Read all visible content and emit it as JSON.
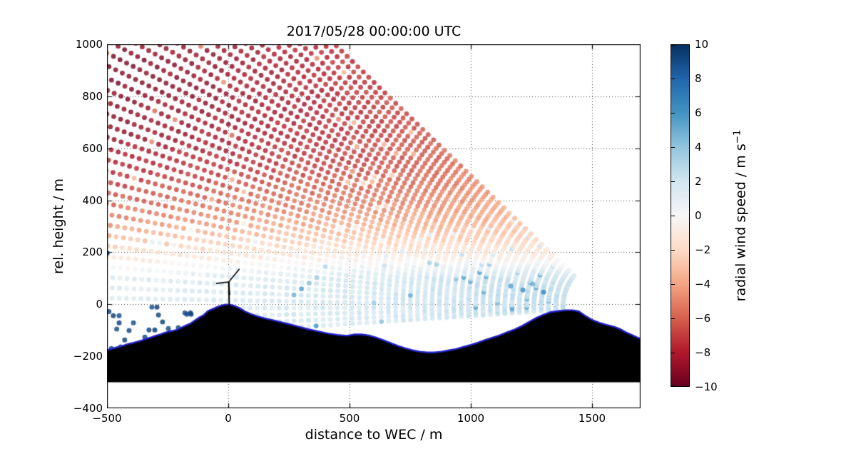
{
  "figure": {
    "title": "2017/05/28 00:00:00 UTC",
    "xlabel": "distance to WEC / m",
    "ylabel": "rel. height / m"
  },
  "axes": {
    "xlim": [
      -500,
      1700
    ],
    "ylim": [
      -400,
      1000
    ],
    "xticks": [
      {
        "v": -500,
        "label": "−500"
      },
      {
        "v": 0,
        "label": "0"
      },
      {
        "v": 500,
        "label": "500"
      },
      {
        "v": 1000,
        "label": "1000"
      },
      {
        "v": 1500,
        "label": "1500"
      }
    ],
    "yticks": [
      {
        "v": 1000,
        "label": "1000"
      },
      {
        "v": 800,
        "label": "800"
      },
      {
        "v": 600,
        "label": "600"
      },
      {
        "v": 400,
        "label": "400"
      },
      {
        "v": 200,
        "label": "200"
      },
      {
        "v": 0,
        "label": "0"
      },
      {
        "v": -200,
        "label": "−200"
      },
      {
        "v": -400,
        "label": "−400"
      }
    ],
    "grid_color": "#444444",
    "frame_color": "#000000"
  },
  "colorbar": {
    "label_text": "radial wind speed / m s",
    "label_exponent": "−1",
    "vmin": -10,
    "vmax": 10,
    "ticks": [
      {
        "v": 10,
        "label": "10"
      },
      {
        "v": 8,
        "label": "8"
      },
      {
        "v": 6,
        "label": "6"
      },
      {
        "v": 4,
        "label": "4"
      },
      {
        "v": 2,
        "label": "2"
      },
      {
        "v": 0,
        "label": "0"
      },
      {
        "v": -2,
        "label": "−2"
      },
      {
        "v": -4,
        "label": "−4"
      },
      {
        "v": -6,
        "label": "−6"
      },
      {
        "v": -8,
        "label": "−8"
      },
      {
        "v": -10,
        "label": "−10"
      }
    ]
  },
  "chart_data": {
    "type": "scatter",
    "description": "Lidar RHI scan of radial wind speed over double-ridge terrain with a wind energy converter (WEC) on the left ridge at x=0. Scan rays fan up-leftward from an origin on the right ridge; dot colour = radial wind speed (RdBu, -10..10 m/s). Dark red aloft (~-9 m/s), pale near surface, weak positive (pale blue) below ~140 m. Navy specks at lower left are hard-target/noise returns.",
    "colormap": {
      "name": "RdBu",
      "stops": [
        [
          -10,
          "#67001f"
        ],
        [
          -8,
          "#b2182b"
        ],
        [
          -6,
          "#d6604d"
        ],
        [
          -4,
          "#f4a582"
        ],
        [
          -2,
          "#fddbc7"
        ],
        [
          0,
          "#f7f7f7"
        ],
        [
          2,
          "#d1e5f0"
        ],
        [
          4,
          "#92c5de"
        ],
        [
          6,
          "#4393c3"
        ],
        [
          8,
          "#2166ac"
        ],
        [
          10,
          "#053061"
        ]
      ]
    },
    "scan": {
      "origin": [
        1560,
        -10
      ],
      "elev_min_deg": -3.5,
      "elev_max_deg": 42,
      "n_rays": 42,
      "r_min": 180,
      "r_max": 2600,
      "r_step": 30,
      "dot_radius": 3.4,
      "dot_alpha": 0.82,
      "noise_amp": 1.0,
      "outlier_prob": 0.037,
      "range_penalty_per_m": 0.00055,
      "range_penalty_pivot": 1250,
      "range_penalty_clamp": [
        -0.5,
        0.8
      ]
    },
    "wind_profile": [
      [
        -300,
        -1.8
      ],
      [
        100,
        -1.8
      ],
      [
        140,
        -0.5
      ],
      [
        170,
        0.8
      ],
      [
        200,
        1.6
      ],
      [
        240,
        2.6
      ],
      [
        300,
        4.0
      ],
      [
        360,
        5.2
      ],
      [
        440,
        6.5
      ],
      [
        540,
        7.8
      ],
      [
        660,
        8.8
      ],
      [
        800,
        9.5
      ],
      [
        1050,
        10.0
      ],
      [
        1300,
        10.2
      ]
    ],
    "terrain": {
      "fill": "#000000",
      "outline": "#2222cc",
      "outline_width": 2.4,
      "base_height": -300,
      "profile": [
        [
          -500,
          -176
        ],
        [
          -480,
          -171
        ],
        [
          -462,
          -166
        ],
        [
          -444,
          -162
        ],
        [
          -426,
          -157
        ],
        [
          -408,
          -151
        ],
        [
          -390,
          -148
        ],
        [
          -372,
          -143
        ],
        [
          -354,
          -138
        ],
        [
          -336,
          -132
        ],
        [
          -318,
          -127
        ],
        [
          -300,
          -121
        ],
        [
          -282,
          -116
        ],
        [
          -264,
          -110
        ],
        [
          -246,
          -105
        ],
        [
          -228,
          -102
        ],
        [
          -210,
          -98
        ],
        [
          -192,
          -89
        ],
        [
          -174,
          -81
        ],
        [
          -156,
          -74
        ],
        [
          -138,
          -62
        ],
        [
          -120,
          -51
        ],
        [
          -102,
          -42
        ],
        [
          -84,
          -26
        ],
        [
          -66,
          -19
        ],
        [
          -48,
          -11
        ],
        [
          -30,
          -5
        ],
        [
          -12,
          -1
        ],
        [
          6,
          -1
        ],
        [
          24,
          -6
        ],
        [
          45,
          -14
        ],
        [
          70,
          -28
        ],
        [
          95,
          -38
        ],
        [
          120,
          -46
        ],
        [
          150,
          -54
        ],
        [
          180,
          -60
        ],
        [
          215,
          -68
        ],
        [
          250,
          -76
        ],
        [
          290,
          -86
        ],
        [
          330,
          -96
        ],
        [
          370,
          -104
        ],
        [
          410,
          -112
        ],
        [
          450,
          -118
        ],
        [
          490,
          -121
        ],
        [
          520,
          -116
        ],
        [
          550,
          -116
        ],
        [
          580,
          -120
        ],
        [
          610,
          -128
        ],
        [
          640,
          -138
        ],
        [
          670,
          -149
        ],
        [
          700,
          -160
        ],
        [
          730,
          -169
        ],
        [
          760,
          -177
        ],
        [
          790,
          -182
        ],
        [
          820,
          -185
        ],
        [
          850,
          -185
        ],
        [
          880,
          -182
        ],
        [
          910,
          -177
        ],
        [
          940,
          -172
        ],
        [
          970,
          -164
        ],
        [
          1000,
          -156
        ],
        [
          1030,
          -147
        ],
        [
          1060,
          -137
        ],
        [
          1090,
          -128
        ],
        [
          1120,
          -119
        ],
        [
          1150,
          -107
        ],
        [
          1180,
          -97
        ],
        [
          1210,
          -84
        ],
        [
          1240,
          -68
        ],
        [
          1270,
          -52
        ],
        [
          1300,
          -40
        ],
        [
          1330,
          -30
        ],
        [
          1360,
          -26
        ],
        [
          1390,
          -23
        ],
        [
          1420,
          -23
        ],
        [
          1445,
          -27
        ],
        [
          1470,
          -43
        ],
        [
          1500,
          -60
        ],
        [
          1530,
          -71
        ],
        [
          1560,
          -79
        ],
        [
          1590,
          -86
        ],
        [
          1615,
          -95
        ],
        [
          1640,
          -108
        ],
        [
          1665,
          -118
        ],
        [
          1685,
          -127
        ],
        [
          1700,
          -132
        ]
      ]
    },
    "turbine": {
      "color": "#000000",
      "tower": [
        4,
        -6,
        2,
        86
      ],
      "tower_width": 2,
      "blade_width": 1.6,
      "blades": [
        [
          2,
          86,
          46,
          136
        ],
        [
          2,
          86,
          -50,
          80
        ],
        [
          2,
          86,
          6,
          36
        ]
      ]
    },
    "noise_points": [
      [
        -499,
        197,
        9.5
      ],
      [
        -492,
        -28,
        9.4
      ],
      [
        -474,
        -44,
        9.5
      ],
      [
        -450,
        -44,
        9.0
      ],
      [
        -450,
        -71,
        9.5
      ],
      [
        -391,
        -71,
        9.0
      ],
      [
        -315,
        -11,
        8.8
      ],
      [
        -294,
        -11,
        9.6
      ],
      [
        -288,
        -41,
        9.2
      ],
      [
        -271,
        -68,
        9.4
      ],
      [
        -247,
        -93,
        9.1
      ],
      [
        -327,
        -99,
        9.3
      ],
      [
        -303,
        -99,
        9.6
      ],
      [
        -409,
        -101,
        9.2
      ],
      [
        -427,
        -137,
        9.4
      ],
      [
        -344,
        -126,
        9.1
      ],
      [
        -482,
        -170,
        9.3
      ],
      [
        -444,
        -164,
        9.5
      ],
      [
        -171,
        -38,
        9.2
      ],
      [
        -153,
        -38,
        9.4
      ],
      [
        -206,
        -90,
        9.1
      ],
      [
        -179,
        -33,
        9.0
      ],
      [
        -156,
        -33,
        9.3
      ],
      [
        -460,
        -95,
        9.0
      ],
      [
        1165,
        70,
        5.5
      ],
      [
        1215,
        55,
        6.0
      ],
      [
        1255,
        78,
        5.0
      ],
      [
        1300,
        47,
        6.5
      ]
    ]
  }
}
